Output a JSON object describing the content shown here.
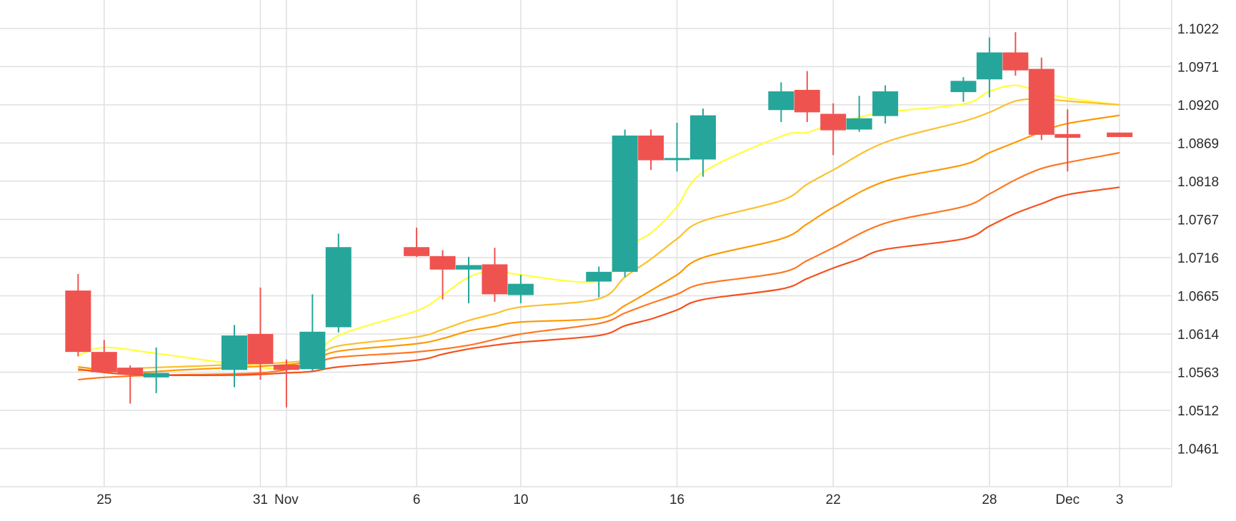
{
  "chart_data": {
    "type": "candlestick",
    "title": "",
    "xlabel": "",
    "ylabel": "",
    "grid": true,
    "legend": "none",
    "ylim": [
      1.041,
      1.106
    ],
    "y_ticks": [
      "1.1022",
      "1.0971",
      "1.0920",
      "1.0869",
      "1.0818",
      "1.0767",
      "1.0716",
      "1.0665",
      "1.0614",
      "1.0563",
      "1.0512",
      "1.0461"
    ],
    "x_ticks": [
      {
        "label": "25",
        "at": "2023-10-25"
      },
      {
        "label": "31",
        "at": "2023-10-31"
      },
      {
        "label": "Nov",
        "at": "2023-11-01"
      },
      {
        "label": "6",
        "at": "2023-11-06"
      },
      {
        "label": "10",
        "at": "2023-11-10"
      },
      {
        "label": "16",
        "at": "2023-11-16"
      },
      {
        "label": "22",
        "at": "2023-11-22"
      },
      {
        "label": "28",
        "at": "2023-11-28"
      },
      {
        "label": "Dec",
        "at": "2023-12-01"
      },
      {
        "label": "3",
        "at": "2023-12-03"
      }
    ],
    "x_range": [
      "2023-10-21",
      "2023-12-05"
    ],
    "colors": {
      "up": "#26a69a",
      "down": "#ef5350",
      "grid": "#e0e0e0"
    },
    "candles": [
      {
        "date": "2023-10-24",
        "open": 1.0672,
        "high": 1.0694,
        "low": 1.0584,
        "close": 1.059
      },
      {
        "date": "2023-10-25",
        "open": 1.059,
        "high": 1.0606,
        "low": 1.0563,
        "close": 1.0563
      },
      {
        "date": "2023-10-26",
        "open": 1.0569,
        "high": 1.0572,
        "low": 1.0521,
        "close": 1.056
      },
      {
        "date": "2023-10-27",
        "open": 1.0556,
        "high": 1.0596,
        "low": 1.0535,
        "close": 1.0562
      },
      {
        "date": "2023-10-30",
        "open": 1.0566,
        "high": 1.0626,
        "low": 1.0543,
        "close": 1.0612
      },
      {
        "date": "2023-10-31",
        "open": 1.0614,
        "high": 1.0676,
        "low": 1.0553,
        "close": 1.0574
      },
      {
        "date": "2023-11-01",
        "open": 1.0573,
        "high": 1.058,
        "low": 1.0516,
        "close": 1.0566
      },
      {
        "date": "2023-11-02",
        "open": 1.0567,
        "high": 1.0667,
        "low": 1.0565,
        "close": 1.0617
      },
      {
        "date": "2023-11-03",
        "open": 1.0623,
        "high": 1.0748,
        "low": 1.0616,
        "close": 1.073
      },
      {
        "date": "2023-11-06",
        "open": 1.073,
        "high": 1.0756,
        "low": 1.0717,
        "close": 1.0718
      },
      {
        "date": "2023-11-07",
        "open": 1.0718,
        "high": 1.0726,
        "low": 1.066,
        "close": 1.07
      },
      {
        "date": "2023-11-08",
        "open": 1.07,
        "high": 1.0717,
        "low": 1.0655,
        "close": 1.0706
      },
      {
        "date": "2023-11-09",
        "open": 1.0707,
        "high": 1.0729,
        "low": 1.0657,
        "close": 1.0667
      },
      {
        "date": "2023-11-10",
        "open": 1.0666,
        "high": 1.0693,
        "low": 1.0655,
        "close": 1.0681
      },
      {
        "date": "2023-11-13",
        "open": 1.0684,
        "high": 1.0704,
        "low": 1.0663,
        "close": 1.0697
      },
      {
        "date": "2023-11-14",
        "open": 1.0697,
        "high": 1.0887,
        "low": 1.069,
        "close": 1.0879
      },
      {
        "date": "2023-11-15",
        "open": 1.0879,
        "high": 1.0887,
        "low": 1.0833,
        "close": 1.0846
      },
      {
        "date": "2023-11-16",
        "open": 1.0847,
        "high": 1.0896,
        "low": 1.0831,
        "close": 1.0849
      },
      {
        "date": "2023-11-17",
        "open": 1.0847,
        "high": 1.0915,
        "low": 1.0824,
        "close": 1.0906
      },
      {
        "date": "2023-11-20",
        "open": 1.0913,
        "high": 1.095,
        "low": 1.0897,
        "close": 1.0938
      },
      {
        "date": "2023-11-21",
        "open": 1.094,
        "high": 1.0965,
        "low": 1.0897,
        "close": 1.091
      },
      {
        "date": "2023-11-22",
        "open": 1.0908,
        "high": 1.0922,
        "low": 1.0853,
        "close": 1.0886
      },
      {
        "date": "2023-11-23",
        "open": 1.0887,
        "high": 1.0932,
        "low": 1.0884,
        "close": 1.0902
      },
      {
        "date": "2023-11-24",
        "open": 1.0905,
        "high": 1.0946,
        "low": 1.0895,
        "close": 1.0938
      },
      {
        "date": "2023-11-27",
        "open": 1.0937,
        "high": 1.0957,
        "low": 1.0924,
        "close": 1.0952
      },
      {
        "date": "2023-11-28",
        "open": 1.0954,
        "high": 1.101,
        "low": 1.093,
        "close": 1.099
      },
      {
        "date": "2023-11-29",
        "open": 1.099,
        "high": 1.1017,
        "low": 1.0959,
        "close": 1.0966
      },
      {
        "date": "2023-11-30",
        "open": 1.0968,
        "high": 1.0983,
        "low": 1.0873,
        "close": 1.088
      },
      {
        "date": "2023-12-01",
        "open": 1.0881,
        "high": 1.0914,
        "low": 1.0831,
        "close": 1.0876
      },
      {
        "date": "2023-12-03",
        "open": 1.0883,
        "high": 1.0883,
        "low": 1.0877,
        "close": 1.0877
      }
    ],
    "series": [
      {
        "color": "#ffff3b",
        "values": [
          {
            "date": "2023-10-24",
            "value": 1.0585
          },
          {
            "date": "2023-10-25",
            "value": 1.0596
          },
          {
            "date": "2023-10-27",
            "value": 1.0588
          },
          {
            "date": "2023-10-30",
            "value": 1.0574
          },
          {
            "date": "2023-11-01",
            "value": 1.0567
          },
          {
            "date": "2023-11-02",
            "value": 1.058
          },
          {
            "date": "2023-11-03",
            "value": 1.0612
          },
          {
            "date": "2023-11-06",
            "value": 1.0645
          },
          {
            "date": "2023-11-07",
            "value": 1.0666
          },
          {
            "date": "2023-11-08",
            "value": 1.069
          },
          {
            "date": "2023-11-09",
            "value": 1.0699
          },
          {
            "date": "2023-11-10",
            "value": 1.0693
          },
          {
            "date": "2023-11-13",
            "value": 1.0685
          },
          {
            "date": "2023-11-14",
            "value": 1.0728
          },
          {
            "date": "2023-11-15",
            "value": 1.0749
          },
          {
            "date": "2023-11-16",
            "value": 1.0784
          },
          {
            "date": "2023-11-17",
            "value": 1.083
          },
          {
            "date": "2023-11-20",
            "value": 1.0878
          },
          {
            "date": "2023-11-21",
            "value": 1.0883
          },
          {
            "date": "2023-11-22",
            "value": 1.0895
          },
          {
            "date": "2023-11-24",
            "value": 1.091
          },
          {
            "date": "2023-11-27",
            "value": 1.0921
          },
          {
            "date": "2023-11-28",
            "value": 1.0938
          },
          {
            "date": "2023-11-29",
            "value": 1.0946
          },
          {
            "date": "2023-11-30",
            "value": 1.0937
          },
          {
            "date": "2023-12-01",
            "value": 1.0929
          },
          {
            "date": "2023-12-03",
            "value": 1.092
          }
        ]
      },
      {
        "color": "#fbc02d",
        "values": [
          {
            "date": "2023-10-24",
            "value": 1.0565
          },
          {
            "date": "2023-10-26",
            "value": 1.0568
          },
          {
            "date": "2023-10-30",
            "value": 1.0573
          },
          {
            "date": "2023-11-01",
            "value": 1.0576
          },
          {
            "date": "2023-11-02",
            "value": 1.0581
          },
          {
            "date": "2023-11-03",
            "value": 1.0598
          },
          {
            "date": "2023-11-06",
            "value": 1.061
          },
          {
            "date": "2023-11-07",
            "value": 1.062
          },
          {
            "date": "2023-11-08",
            "value": 1.0632
          },
          {
            "date": "2023-11-09",
            "value": 1.0641
          },
          {
            "date": "2023-11-10",
            "value": 1.065
          },
          {
            "date": "2023-11-13",
            "value": 1.0661
          },
          {
            "date": "2023-11-14",
            "value": 1.069
          },
          {
            "date": "2023-11-15",
            "value": 1.0714
          },
          {
            "date": "2023-11-16",
            "value": 1.0741
          },
          {
            "date": "2023-11-17",
            "value": 1.0765
          },
          {
            "date": "2023-11-20",
            "value": 1.0792
          },
          {
            "date": "2023-11-21",
            "value": 1.0814
          },
          {
            "date": "2023-11-22",
            "value": 1.0833
          },
          {
            "date": "2023-11-24",
            "value": 1.087
          },
          {
            "date": "2023-11-27",
            "value": 1.0898
          },
          {
            "date": "2023-11-28",
            "value": 1.091
          },
          {
            "date": "2023-11-29",
            "value": 1.0925
          },
          {
            "date": "2023-11-30",
            "value": 1.0928
          },
          {
            "date": "2023-12-01",
            "value": 1.0925
          },
          {
            "date": "2023-12-03",
            "value": 1.092
          }
        ]
      },
      {
        "color": "#ff9800",
        "values": [
          {
            "date": "2023-10-24",
            "value": 1.057
          },
          {
            "date": "2023-10-26",
            "value": 1.0563
          },
          {
            "date": "2023-10-28",
            "value": 1.0566
          },
          {
            "date": "2023-10-31",
            "value": 1.0571
          },
          {
            "date": "2023-11-01",
            "value": 1.0573
          },
          {
            "date": "2023-11-02",
            "value": 1.0578
          },
          {
            "date": "2023-11-03",
            "value": 1.0591
          },
          {
            "date": "2023-11-06",
            "value": 1.0601
          },
          {
            "date": "2023-11-07",
            "value": 1.0608
          },
          {
            "date": "2023-11-08",
            "value": 1.0618
          },
          {
            "date": "2023-11-09",
            "value": 1.0624
          },
          {
            "date": "2023-11-10",
            "value": 1.063
          },
          {
            "date": "2023-11-13",
            "value": 1.0635
          },
          {
            "date": "2023-11-14",
            "value": 1.0652
          },
          {
            "date": "2023-11-15",
            "value": 1.0672
          },
          {
            "date": "2023-11-16",
            "value": 1.0693
          },
          {
            "date": "2023-11-17",
            "value": 1.0716
          },
          {
            "date": "2023-11-20",
            "value": 1.0741
          },
          {
            "date": "2023-11-21",
            "value": 1.0761
          },
          {
            "date": "2023-11-22",
            "value": 1.0783
          },
          {
            "date": "2023-11-24",
            "value": 1.0818
          },
          {
            "date": "2023-11-27",
            "value": 1.084
          },
          {
            "date": "2023-11-28",
            "value": 1.0856
          },
          {
            "date": "2023-11-29",
            "value": 1.087
          },
          {
            "date": "2023-11-30",
            "value": 1.0884
          },
          {
            "date": "2023-12-01",
            "value": 1.0895
          },
          {
            "date": "2023-12-03",
            "value": 1.0906
          }
        ]
      },
      {
        "color": "#ff7722",
        "values": [
          {
            "date": "2023-10-24",
            "value": 1.0553
          },
          {
            "date": "2023-10-25",
            "value": 1.0556
          },
          {
            "date": "2023-10-27",
            "value": 1.0559
          },
          {
            "date": "2023-10-31",
            "value": 1.0562
          },
          {
            "date": "2023-11-02",
            "value": 1.0574
          },
          {
            "date": "2023-11-03",
            "value": 1.0583
          },
          {
            "date": "2023-11-06",
            "value": 1.059
          },
          {
            "date": "2023-11-08",
            "value": 1.0599
          },
          {
            "date": "2023-11-10",
            "value": 1.0614
          },
          {
            "date": "2023-11-13",
            "value": 1.0628
          },
          {
            "date": "2023-11-14",
            "value": 1.0642
          },
          {
            "date": "2023-11-15",
            "value": 1.0655
          },
          {
            "date": "2023-11-16",
            "value": 1.0667
          },
          {
            "date": "2023-11-17",
            "value": 1.0681
          },
          {
            "date": "2023-11-20",
            "value": 1.0696
          },
          {
            "date": "2023-11-21",
            "value": 1.0712
          },
          {
            "date": "2023-11-22",
            "value": 1.0729
          },
          {
            "date": "2023-11-24",
            "value": 1.0762
          },
          {
            "date": "2023-11-27",
            "value": 1.0784
          },
          {
            "date": "2023-11-28",
            "value": 1.0801
          },
          {
            "date": "2023-11-29",
            "value": 1.082
          },
          {
            "date": "2023-11-30",
            "value": 1.0835
          },
          {
            "date": "2023-12-01",
            "value": 1.0843
          },
          {
            "date": "2023-12-03",
            "value": 1.0856
          }
        ]
      },
      {
        "color": "#f4511e",
        "values": [
          {
            "date": "2023-10-24",
            "value": 1.0567
          },
          {
            "date": "2023-10-26",
            "value": 1.056
          },
          {
            "date": "2023-10-30",
            "value": 1.0559
          },
          {
            "date": "2023-11-01",
            "value": 1.0562
          },
          {
            "date": "2023-11-02",
            "value": 1.0564
          },
          {
            "date": "2023-11-03",
            "value": 1.057
          },
          {
            "date": "2023-11-06",
            "value": 1.0579
          },
          {
            "date": "2023-11-07",
            "value": 1.0587
          },
          {
            "date": "2023-11-08",
            "value": 1.0594
          },
          {
            "date": "2023-11-09",
            "value": 1.0599
          },
          {
            "date": "2023-11-10",
            "value": 1.0603
          },
          {
            "date": "2023-11-13",
            "value": 1.0612
          },
          {
            "date": "2023-11-14",
            "value": 1.0625
          },
          {
            "date": "2023-11-15",
            "value": 1.0634
          },
          {
            "date": "2023-11-16",
            "value": 1.0646
          },
          {
            "date": "2023-11-17",
            "value": 1.066
          },
          {
            "date": "2023-11-20",
            "value": 1.0674
          },
          {
            "date": "2023-11-21",
            "value": 1.0688
          },
          {
            "date": "2023-11-22",
            "value": 1.0702
          },
          {
            "date": "2023-11-23",
            "value": 1.0714
          },
          {
            "date": "2023-11-24",
            "value": 1.0727
          },
          {
            "date": "2023-11-27",
            "value": 1.0741
          },
          {
            "date": "2023-11-28",
            "value": 1.0758
          },
          {
            "date": "2023-11-29",
            "value": 1.0775
          },
          {
            "date": "2023-11-30",
            "value": 1.0788
          },
          {
            "date": "2023-12-01",
            "value": 1.08
          },
          {
            "date": "2023-12-03",
            "value": 1.081
          }
        ]
      }
    ]
  }
}
